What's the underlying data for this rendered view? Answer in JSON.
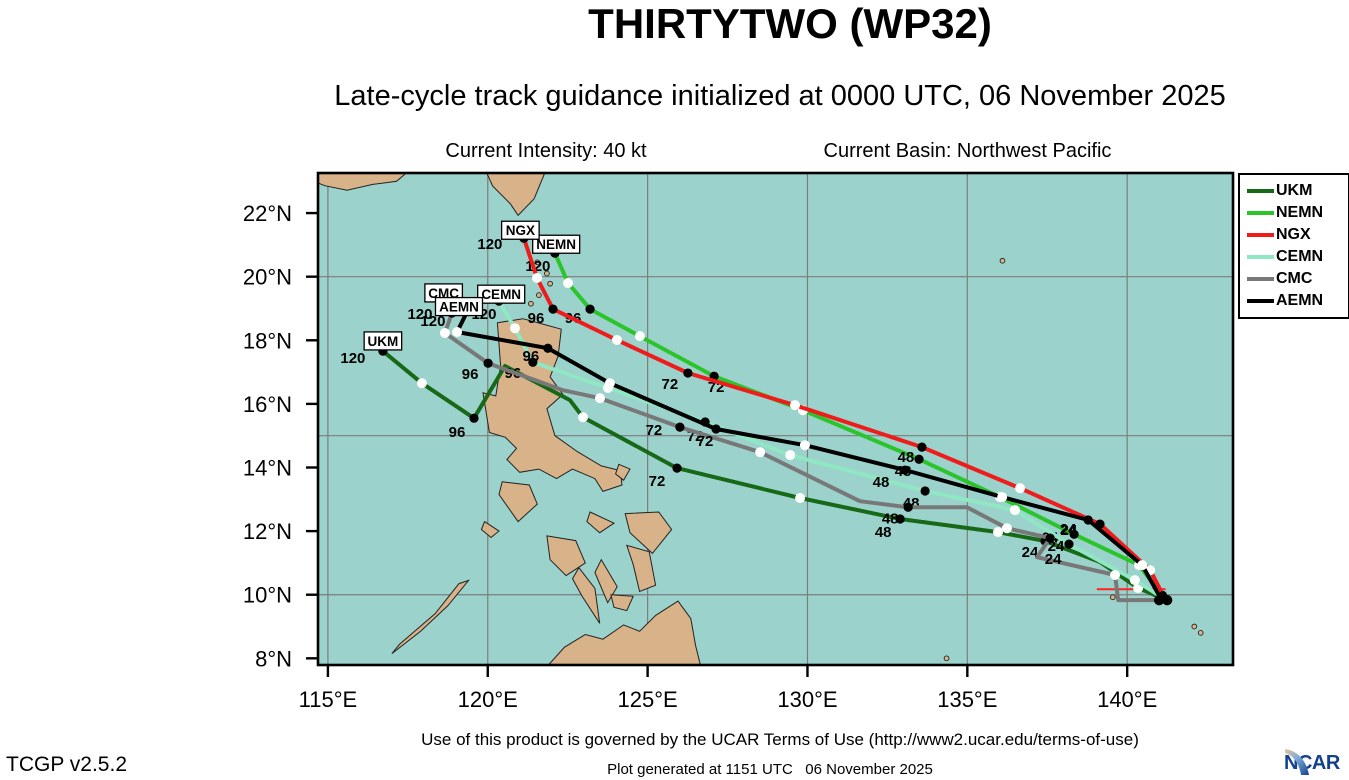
{
  "page": {
    "title": "THIRTYTWO (WP32)",
    "subtitle": "Late-cycle track guidance initialized at 0000 UTC, 06 November 2025",
    "current_intensity": "Current Intensity: 40 kt",
    "current_basin": "Current Basin: Northwest Pacific",
    "terms": "Use of this product is governed by the UCAR Terms of Use (http://www2.ucar.edu/terms-of-use)",
    "version": "TCGP v2.5.2",
    "generated": "Plot generated at 1151 UTC   06 November 2025",
    "logo_text": "NCAR"
  },
  "chart_data": {
    "type": "line",
    "subtype": "tropical-cyclone-track-guidance-map",
    "title": "THIRTYTWO (WP32)",
    "storm_id": "WP32",
    "init_time": "0000 UTC, 06 November 2025",
    "current_intensity_kt": 40,
    "basin": "Northwest Pacific",
    "xlim": [
      114.69,
      143.31
    ],
    "ylim": [
      7.79,
      23.26
    ],
    "x_ticks": {
      "values": [
        115,
        120,
        125,
        130,
        135,
        140
      ],
      "labels": [
        "115°E",
        "120°E",
        "125°E",
        "130°E",
        "135°E",
        "140°E"
      ]
    },
    "y_ticks": {
      "values": [
        8,
        10,
        12,
        14,
        16,
        18,
        20,
        22
      ],
      "labels": [
        "8°N",
        "10°N",
        "12°N",
        "14°N",
        "16°N",
        "18°N",
        "20°N",
        "22°N"
      ]
    },
    "grid": {
      "lons": [
        115,
        120,
        125,
        130,
        135,
        140
      ],
      "lats": [
        10,
        15,
        20
      ]
    },
    "colors": {
      "ocean": "#9cd2cc",
      "land": "#d8b288",
      "coast": "#222222",
      "grid": "#7d7d7d",
      "frame": "#000000"
    },
    "hour_dot_interval": 12,
    "labeled_hours": [
      24,
      48,
      72,
      96,
      120
    ],
    "legend_entries": [
      "UKM",
      "NEMN",
      "NGX",
      "CEMN",
      "CMC",
      "AEMN"
    ],
    "series": [
      {
        "name": "UKM",
        "color": "#176917",
        "name_box": [
          116.72,
          17.98
        ],
        "points": [
          [
            116.72,
            17.66,
            120
          ],
          [
            117.94,
            16.65,
            108
          ],
          [
            119.57,
            15.55,
            96
          ],
          [
            120.54,
            17.19,
            null
          ],
          [
            122.57,
            16.12,
            null
          ],
          [
            122.98,
            15.58,
            84
          ],
          [
            125.92,
            13.98,
            72
          ],
          [
            129.77,
            13.04,
            60
          ],
          [
            132.9,
            12.38,
            48
          ],
          [
            135.96,
            11.97,
            36
          ],
          [
            137.43,
            11.69,
            24
          ],
          [
            139.15,
            11.03,
            null
          ],
          [
            140.34,
            10.21,
            12
          ],
          [
            141.03,
            9.92,
            0
          ]
        ],
        "label_offsets": {
          "120": [
            -30,
            12
          ],
          "96": [
            -17,
            19
          ],
          "72": [
            -20,
            18
          ],
          "48": [
            -17,
            18
          ],
          "24": [
            -15,
            16
          ]
        }
      },
      {
        "name": "NEMN",
        "color": "#2bc42b",
        "name_box": [
          122.14,
          21.02
        ],
        "points": [
          [
            122.1,
            20.74,
            120
          ],
          [
            122.51,
            19.8,
            108
          ],
          [
            123.2,
            18.98,
            96
          ],
          [
            124.76,
            18.13,
            84
          ],
          [
            127.08,
            16.87,
            72
          ],
          [
            129.86,
            15.8,
            60
          ],
          [
            133.49,
            14.26,
            48
          ],
          [
            136.02,
            13.07,
            36
          ],
          [
            138.34,
            11.9,
            24
          ],
          [
            140.37,
            10.93,
            12
          ],
          [
            141.06,
            10.02,
            0
          ]
        ],
        "label_offsets": {
          "120": [
            -17,
            18
          ],
          "96": [
            -17,
            14
          ],
          "72": [
            2,
            16
          ],
          "48": [
            -16,
            17
          ],
          "24": [
            -24,
            8
          ]
        }
      },
      {
        "name": "NGX",
        "color": "#ef1c1c",
        "name_box": [
          121.02,
          21.46
        ],
        "points": [
          [
            121.13,
            21.21,
            120
          ],
          [
            121.54,
            19.96,
            108
          ],
          [
            122.04,
            18.98,
            96
          ],
          [
            124.04,
            18.01,
            84
          ],
          [
            126.26,
            16.97,
            72
          ],
          [
            129.61,
            15.96,
            60
          ],
          [
            133.58,
            14.64,
            48
          ],
          [
            136.65,
            13.35,
            36
          ],
          [
            139.15,
            12.22,
            24
          ],
          [
            140.72,
            10.77,
            12
          ],
          [
            141.12,
            9.99,
            0
          ]
        ],
        "label_offsets": {
          "120": [
            -34,
            11
          ],
          "96": [
            -17,
            14
          ],
          "72": [
            -18,
            16
          ],
          "48": [
            -16,
            15
          ],
          "24": [
            -31,
            11
          ]
        }
      },
      {
        "name": "CEMN",
        "color": "#8fe7c4",
        "name_box": [
          120.42,
          19.45
        ],
        "points": [
          [
            120.35,
            19.23,
            120
          ],
          [
            120.85,
            18.38,
            108
          ],
          [
            121.41,
            17.31,
            96
          ],
          [
            123.76,
            16.5,
            84
          ],
          [
            126.8,
            15.43,
            72
          ],
          [
            129.46,
            14.39,
            60
          ],
          [
            133.68,
            13.26,
            48
          ],
          [
            136.49,
            12.66,
            36
          ],
          [
            138.18,
            11.59,
            24
          ],
          [
            140.24,
            10.46,
            12
          ],
          [
            141.03,
            9.96,
            0
          ]
        ],
        "label_offsets": {
          "120": [
            -15,
            18
          ],
          "96": [
            -20,
            16
          ],
          "72": [
            -10,
            19
          ],
          "48": [
            -14,
            17
          ],
          "24": [
            -13,
            7
          ]
        }
      },
      {
        "name": "CMC",
        "color": "#787878",
        "name_box": [
          118.62,
          19.49
        ],
        "points": [
          [
            118.88,
            18.86,
            120
          ],
          [
            118.66,
            18.23,
            108
          ],
          [
            120.01,
            17.28,
            96
          ],
          [
            122.35,
            16.43,
            null
          ],
          [
            123.51,
            16.18,
            84
          ],
          [
            126.01,
            15.27,
            72
          ],
          [
            128.52,
            14.48,
            60
          ],
          [
            131.64,
            12.94,
            null
          ],
          [
            133.15,
            12.75,
            48
          ],
          [
            134.99,
            12.75,
            null
          ],
          [
            136.24,
            12.09,
            36
          ],
          [
            137.59,
            11.78,
            24
          ],
          [
            137.18,
            11.18,
            null
          ],
          [
            139.62,
            10.62,
            12
          ],
          [
            139.72,
            9.83,
            null
          ],
          [
            140.97,
            9.83,
            0
          ]
        ],
        "label_offsets": {
          "120": [
            -32,
            6
          ],
          "96": [
            -18,
            16
          ],
          "72": [
            -26,
            8
          ],
          "48": [
            -18,
            16
          ],
          "24": [
            3,
            26
          ]
        }
      },
      {
        "name": "AEMN",
        "color": "#000000",
        "name_box": [
          119.1,
          19.06
        ],
        "points": [
          [
            119.38,
            18.95,
            120
          ],
          [
            119.04,
            18.26,
            108
          ],
          [
            121.88,
            17.75,
            96
          ],
          [
            123.82,
            16.65,
            84
          ],
          [
            127.14,
            15.21,
            72
          ],
          [
            129.92,
            14.7,
            60
          ],
          [
            133.05,
            13.92,
            48
          ],
          [
            136.09,
            13.07,
            36
          ],
          [
            138.78,
            12.35,
            24
          ],
          [
            140.47,
            10.93,
            12
          ],
          [
            141.03,
            9.92,
            0
          ]
        ],
        "label_offsets": {
          "120": [
            -35,
            16
          ],
          "96": [
            -17,
            13
          ],
          "72": [
            -11,
            17
          ],
          "48": [
            -24,
            17
          ],
          "24": [
            -20,
            14
          ]
        }
      }
    ],
    "observed_track": {
      "color": "#ff2222",
      "points": [
        [
          139.05,
          10.17
        ],
        [
          141.2,
          10.17
        ]
      ]
    },
    "current_position": {
      "dots": [
        [
          141.0,
          9.83
        ],
        [
          141.25,
          9.83
        ],
        [
          141.12,
          9.99
        ]
      ]
    }
  },
  "map_features": {
    "polygons": {
      "china-coast": [
        [
          114.69,
          23.3
        ],
        [
          117.5,
          23.3
        ],
        [
          117.15,
          23.0
        ],
        [
          116.4,
          22.9
        ],
        [
          115.6,
          22.72
        ],
        [
          114.9,
          22.86
        ],
        [
          114.69,
          22.95
        ]
      ],
      "taiwan": [
        [
          119.95,
          23.3
        ],
        [
          121.8,
          23.3
        ],
        [
          121.45,
          22.45
        ],
        [
          120.95,
          21.93
        ],
        [
          120.7,
          22.3
        ],
        [
          120.15,
          22.85
        ]
      ],
      "luzon": [
        [
          120.3,
          18.55
        ],
        [
          121.1,
          18.68
        ],
        [
          121.75,
          18.5
        ],
        [
          122.3,
          18.35
        ],
        [
          122.2,
          17.5
        ],
        [
          121.95,
          16.85
        ],
        [
          122.35,
          16.3
        ],
        [
          121.85,
          15.85
        ],
        [
          122.1,
          15.0
        ],
        [
          122.8,
          14.5
        ],
        [
          123.55,
          14.05
        ],
        [
          124.15,
          13.9
        ],
        [
          124.2,
          13.45
        ],
        [
          123.6,
          13.25
        ],
        [
          123.35,
          13.65
        ],
        [
          122.65,
          13.95
        ],
        [
          122.15,
          13.65
        ],
        [
          121.6,
          13.95
        ],
        [
          121.0,
          13.85
        ],
        [
          120.6,
          14.25
        ],
        [
          120.9,
          14.6
        ],
        [
          120.55,
          14.95
        ],
        [
          120.05,
          15.1
        ],
        [
          119.85,
          16.35
        ],
        [
          120.25,
          16.25
        ],
        [
          120.4,
          17.2
        ]
      ],
      "mindoro": [
        [
          120.45,
          13.55
        ],
        [
          121.3,
          13.45
        ],
        [
          121.55,
          12.85
        ],
        [
          120.95,
          12.3
        ],
        [
          120.35,
          13.15
        ]
      ],
      "palawan": [
        [
          117.0,
          8.15
        ],
        [
          117.9,
          8.85
        ],
        [
          118.75,
          9.65
        ],
        [
          119.4,
          10.45
        ],
        [
          119.1,
          10.35
        ],
        [
          118.35,
          9.4
        ],
        [
          117.25,
          8.45
        ]
      ],
      "busuanga": [
        [
          119.9,
          12.3
        ],
        [
          120.35,
          12.0
        ],
        [
          120.1,
          11.8
        ],
        [
          119.8,
          12.05
        ]
      ],
      "panay": [
        [
          121.85,
          11.85
        ],
        [
          122.75,
          11.7
        ],
        [
          123.05,
          11.0
        ],
        [
          122.45,
          10.6
        ],
        [
          121.95,
          11.1
        ]
      ],
      "negros": [
        [
          122.85,
          10.85
        ],
        [
          123.35,
          10.2
        ],
        [
          123.5,
          9.1
        ],
        [
          122.95,
          9.95
        ],
        [
          122.65,
          10.5
        ]
      ],
      "cebu": [
        [
          123.55,
          11.1
        ],
        [
          124.05,
          10.25
        ],
        [
          123.75,
          9.75
        ],
        [
          123.35,
          10.7
        ]
      ],
      "bohol": [
        [
          123.85,
          10.0
        ],
        [
          124.55,
          9.95
        ],
        [
          124.35,
          9.5
        ],
        [
          123.95,
          9.6
        ]
      ],
      "leyte": [
        [
          124.35,
          11.55
        ],
        [
          125.05,
          11.35
        ],
        [
          125.25,
          10.3
        ],
        [
          124.75,
          10.1
        ],
        [
          124.55,
          10.95
        ]
      ],
      "samar": [
        [
          124.3,
          12.55
        ],
        [
          125.35,
          12.6
        ],
        [
          125.75,
          12.05
        ],
        [
          125.15,
          11.3
        ],
        [
          124.45,
          11.95
        ]
      ],
      "masbate": [
        [
          123.2,
          12.6
        ],
        [
          123.95,
          12.25
        ],
        [
          123.5,
          11.95
        ],
        [
          123.1,
          12.3
        ]
      ],
      "catanduanes": [
        [
          124.1,
          14.1
        ],
        [
          124.45,
          13.95
        ],
        [
          124.25,
          13.6
        ],
        [
          124.0,
          13.8
        ]
      ],
      "mindanao": [
        [
          121.9,
          7.79
        ],
        [
          122.4,
          8.35
        ],
        [
          123.05,
          8.75
        ],
        [
          123.6,
          8.6
        ],
        [
          124.25,
          9.05
        ],
        [
          124.75,
          8.85
        ],
        [
          125.25,
          9.35
        ],
        [
          125.95,
          9.8
        ],
        [
          126.35,
          9.25
        ],
        [
          126.5,
          8.4
        ],
        [
          126.65,
          7.79
        ]
      ]
    },
    "islet_dots": [
      [
        121.55,
        20.45
      ],
      [
        121.85,
        20.1
      ],
      [
        121.95,
        19.78
      ],
      [
        121.6,
        19.42
      ],
      [
        121.35,
        19.15
      ],
      [
        136.1,
        20.5
      ],
      [
        139.55,
        9.92
      ],
      [
        142.1,
        9.0
      ],
      [
        142.3,
        8.8
      ],
      [
        134.35,
        8.0
      ]
    ]
  }
}
